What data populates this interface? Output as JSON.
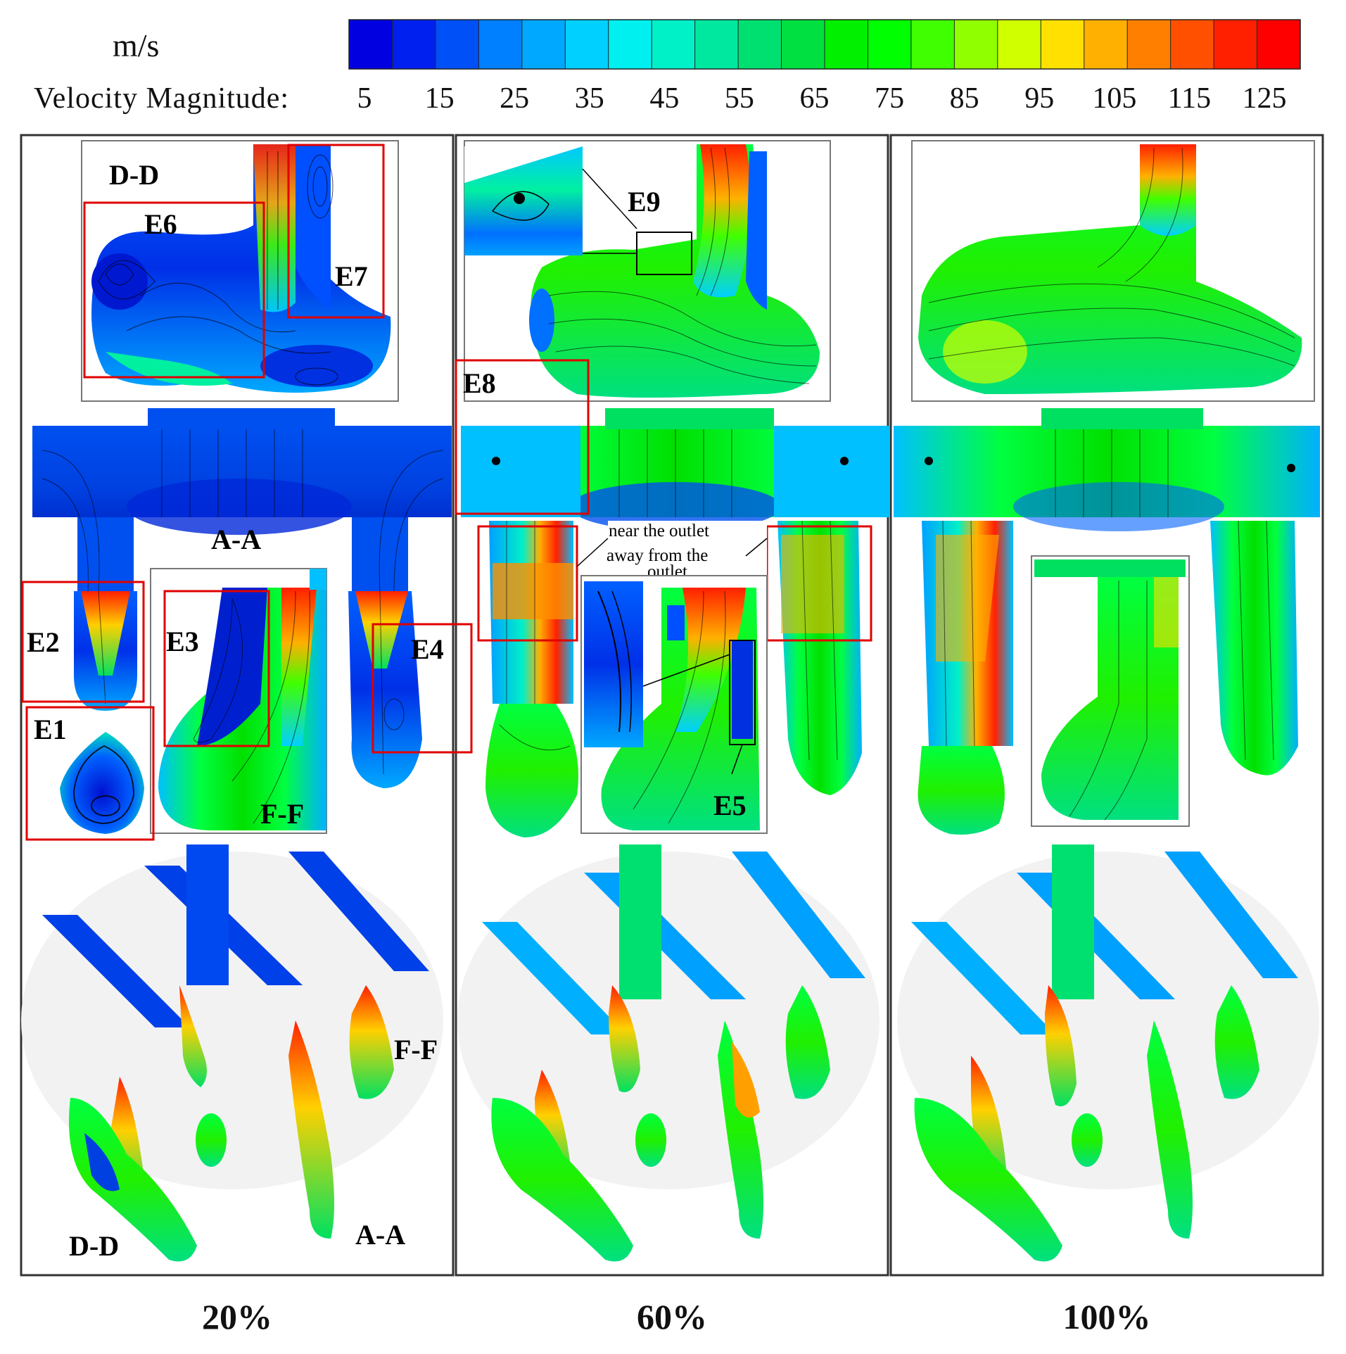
{
  "legend": {
    "unit": "m/s",
    "label": "Velocity Magnitude:",
    "ticks": [
      "5",
      "15",
      "25",
      "35",
      "45",
      "55",
      "65",
      "75",
      "85",
      "95",
      "105",
      "115",
      "125"
    ],
    "tick_values": [
      5,
      15,
      25,
      35,
      45,
      55,
      65,
      75,
      85,
      95,
      105,
      115,
      125
    ],
    "range": [
      0,
      130
    ],
    "colors": [
      "#0000e0",
      "#0020f0",
      "#0050f8",
      "#0080ff",
      "#00a8ff",
      "#00d0ff",
      "#00f0f0",
      "#00f0c8",
      "#00e8a0",
      "#00e070",
      "#00e040",
      "#00f000",
      "#00ff00",
      "#40ff00",
      "#90ff00",
      "#d0ff00",
      "#ffe000",
      "#ffb000",
      "#ff8000",
      "#ff5000",
      "#ff2000",
      "#ff0000"
    ]
  },
  "columns": [
    {
      "label": "20%"
    },
    {
      "label": "60%"
    },
    {
      "label": "100%"
    }
  ],
  "annotations": {
    "col1": {
      "dd": "D-D",
      "aa": "A-A",
      "ff": "F-F",
      "e1": "E1",
      "e2": "E2",
      "e3": "E3",
      "e4": "E4",
      "e6": "E6",
      "e7": "E7",
      "ff3d": "F-F",
      "dd3d": "D-D",
      "aa3d": "A-A"
    },
    "col2": {
      "e5": "E5",
      "e8": "E8",
      "e9": "E9",
      "near": "near the outlet",
      "away": "away from the",
      "outlet": "outlet"
    }
  }
}
